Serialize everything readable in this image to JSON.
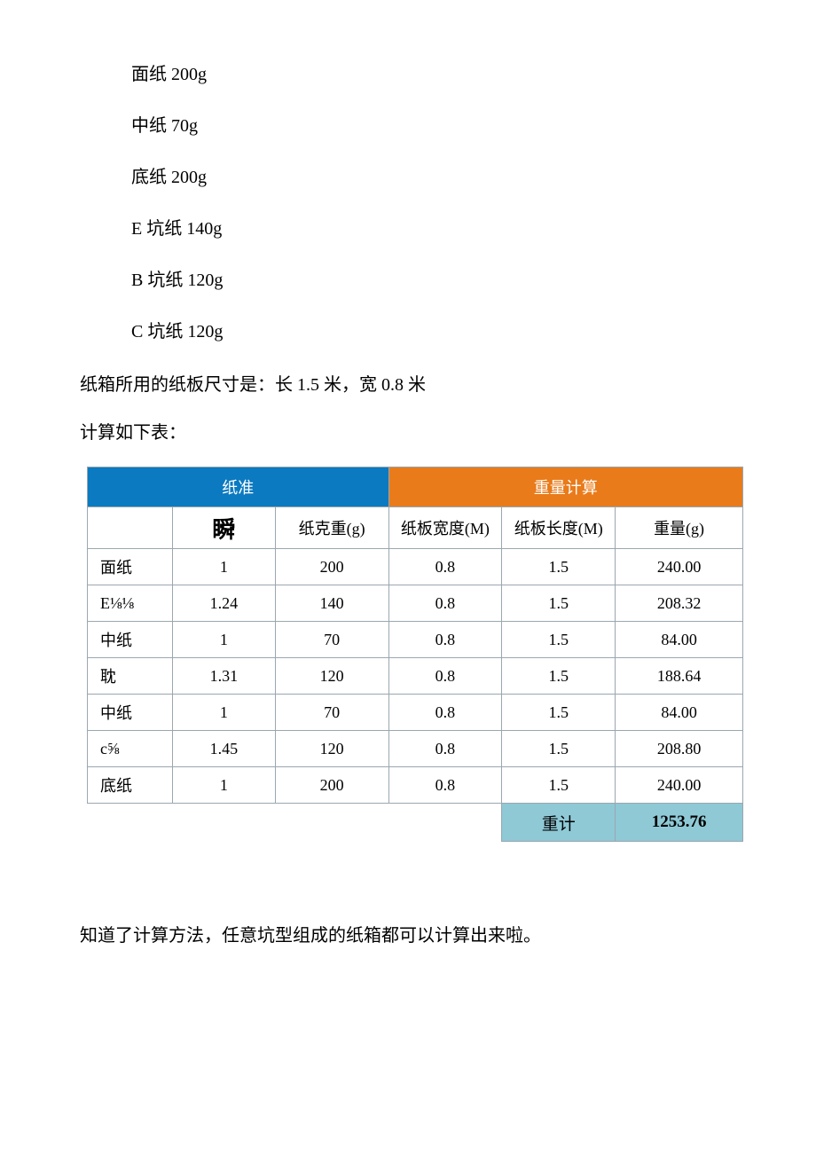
{
  "paper_specs": [
    "面纸 200g",
    "中纸 70g",
    "底纸 200g",
    "E 坑纸 140g",
    "B 坑纸 120g",
    "C 坑纸 120g"
  ],
  "dimension_line": "纸箱所用的纸板尺寸是：长 1.5 米，宽 0.8 米",
  "calc_intro": "计算如下表：",
  "table": {
    "header_left": "纸准",
    "header_right": "重量计算",
    "sub_headers": {
      "col0_blank": "",
      "col1_big": "瞬",
      "col2": "纸克重(g)",
      "col3": "纸板宽度(M)",
      "col4": "纸板长度(M)",
      "col5": "重量(g)"
    },
    "rows": [
      {
        "name": "面纸",
        "coef": "1",
        "gram": "200",
        "w": "0.8",
        "l": "1.5",
        "weight": "240.00"
      },
      {
        "name": "E⅛⅛",
        "coef": "1.24",
        "gram": "140",
        "w": "0.8",
        "l": "1.5",
        "weight": "208.32"
      },
      {
        "name": "中纸",
        "coef": "1",
        "gram": "70",
        "w": "0.8",
        "l": "1.5",
        "weight": "84.00"
      },
      {
        "name": "耽",
        "coef": "1.31",
        "gram": "120",
        "w": "0.8",
        "l": "1.5",
        "weight": "188.64"
      },
      {
        "name": "中纸",
        "coef": "1",
        "gram": "70",
        "w": "0.8",
        "l": "1.5",
        "weight": "84.00"
      },
      {
        "name": "c⅝",
        "coef": "1.45",
        "gram": "120",
        "w": "0.8",
        "l": "1.5",
        "weight": "208.80"
      },
      {
        "name": "底纸",
        "coef": "1",
        "gram": "200",
        "w": "0.8",
        "l": "1.5",
        "weight": "240.00"
      }
    ],
    "total_label": "重计",
    "total_value": "1253.76",
    "colors": {
      "hdr_left_bg": "#0b7ac1",
      "hdr_right_bg": "#e97b1a",
      "hdr_text": "#ffffff",
      "border": "#9aa7af",
      "total_bg": "#8fc9d6"
    }
  },
  "footer_line": "知道了计算方法，任意坑型组成的纸箱都可以计算出来啦。"
}
